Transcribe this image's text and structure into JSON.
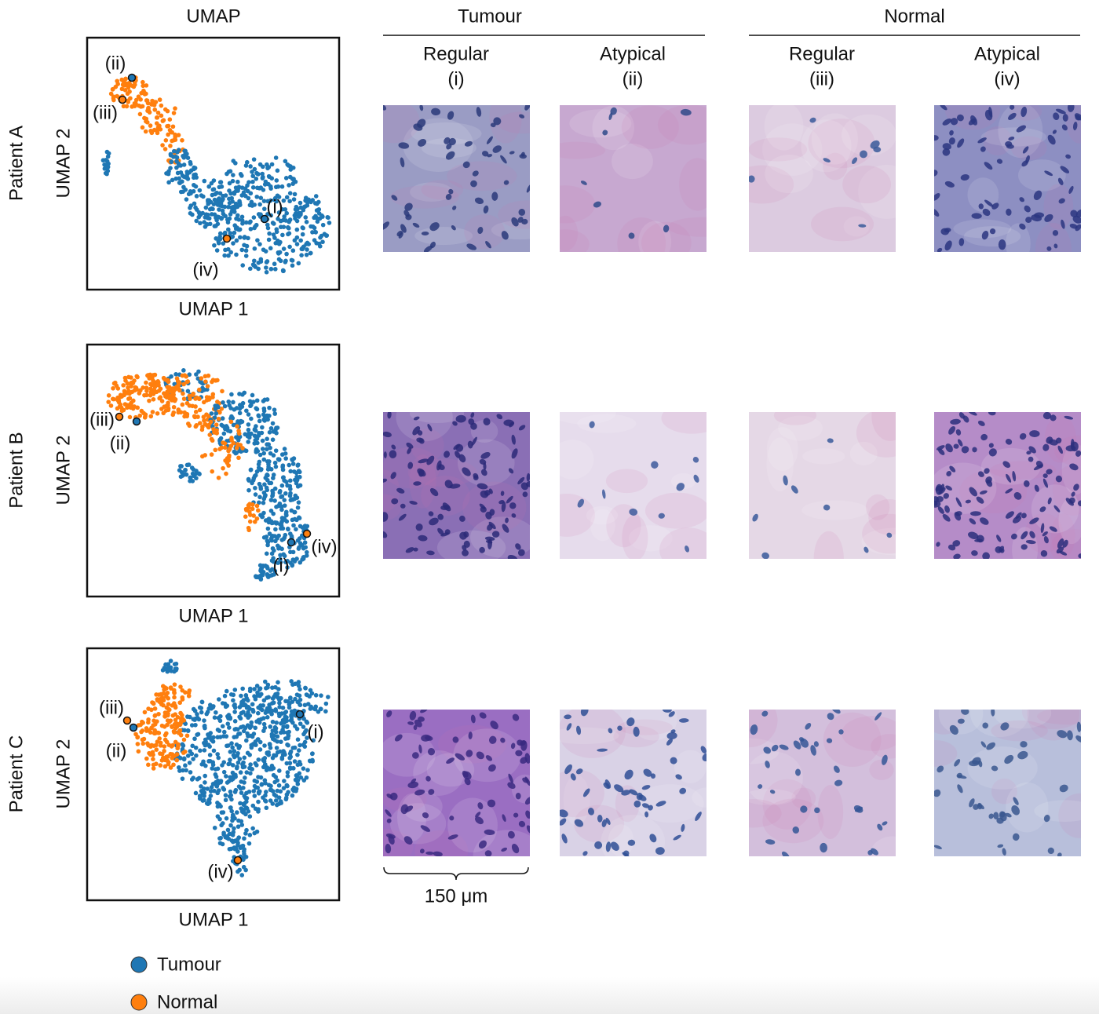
{
  "column_headers": {
    "umap": "UMAP",
    "tumour": "Tumour",
    "normal": "Normal"
  },
  "subcolumns": [
    {
      "label": "Regular",
      "sub": "(i)"
    },
    {
      "label": "Atypical",
      "sub": "(ii)"
    },
    {
      "label": "Regular",
      "sub": "(iii)"
    },
    {
      "label": "Atypical",
      "sub": "(iv)"
    }
  ],
  "rows": [
    {
      "patient": "Patient A",
      "y_axis": "UMAP 2",
      "x_axis": "UMAP 1",
      "points": [
        "(i)",
        "(ii)",
        "(iii)",
        "(iv)"
      ]
    },
    {
      "patient": "Patient B",
      "y_axis": "UMAP 2",
      "x_axis": "UMAP 1",
      "points": [
        "(i)",
        "(ii)",
        "(iii)",
        "(iv)"
      ]
    },
    {
      "patient": "Patient C",
      "y_axis": "UMAP 2",
      "x_axis": "UMAP 1",
      "points": [
        "(i)",
        "(ii)",
        "(iii)",
        "(iv)"
      ]
    }
  ],
  "scale_bar": "150 μm",
  "legend": [
    {
      "name": "Tumour",
      "color": "#1f77b4"
    },
    {
      "name": "Normal",
      "color": "#ff7f0e"
    }
  ]
}
